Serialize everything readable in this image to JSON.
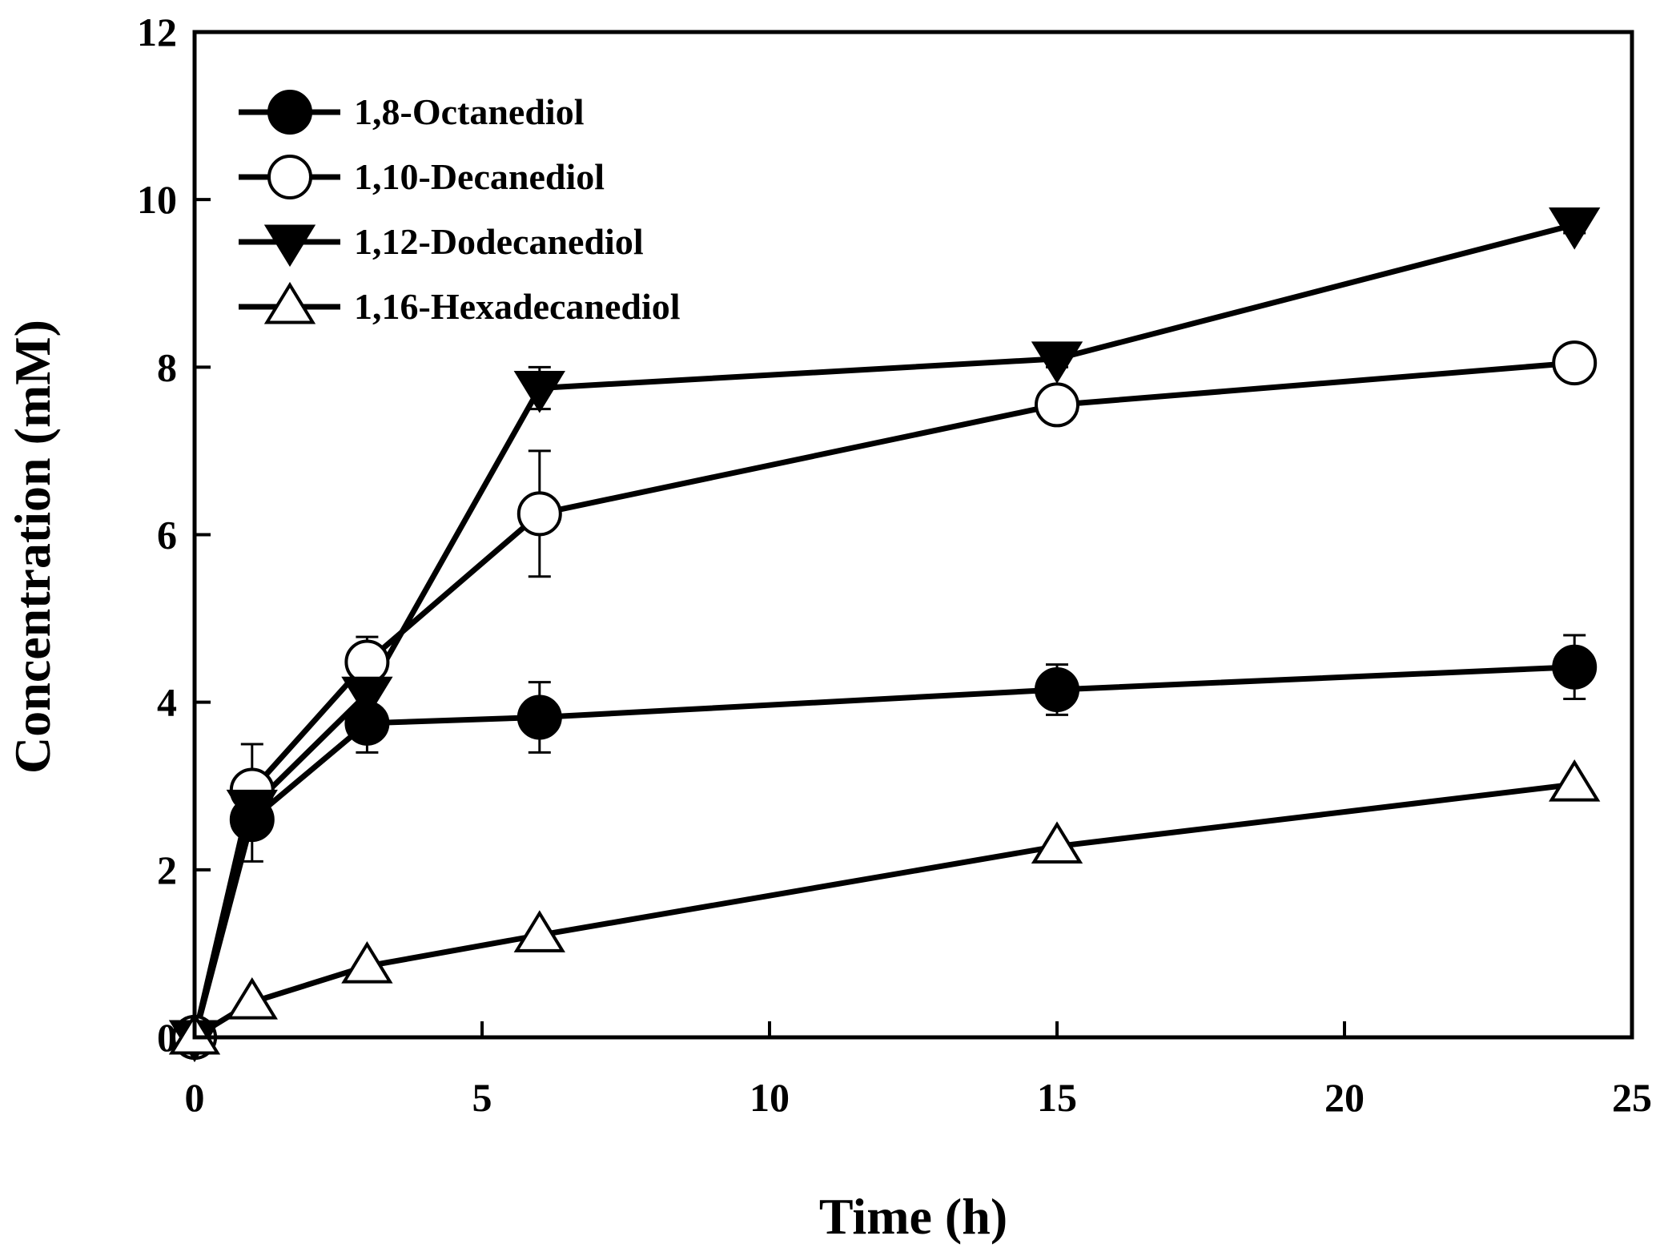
{
  "chart_data": {
    "type": "line",
    "title": "",
    "xlabel": "Time (h)",
    "ylabel": "Concentration (mM)",
    "xlim": [
      0,
      25
    ],
    "ylim": [
      0,
      12
    ],
    "xticks": [
      0,
      5,
      10,
      15,
      20,
      25
    ],
    "yticks": [
      0,
      2,
      4,
      6,
      8,
      10,
      12
    ],
    "grid": false,
    "legend_position": "top-left",
    "series": [
      {
        "name": "1,8-Octanediol",
        "marker": "filled-circle",
        "x": [
          0,
          1,
          3,
          6,
          15,
          24
        ],
        "y": [
          0,
          2.6,
          3.75,
          3.82,
          4.15,
          4.42
        ],
        "err": [
          0,
          0.5,
          0.35,
          0.42,
          0.3,
          0.38
        ]
      },
      {
        "name": "1,10-Decanediol",
        "marker": "open-circle",
        "x": [
          0,
          1,
          3,
          6,
          15,
          24
        ],
        "y": [
          0,
          2.95,
          4.48,
          6.25,
          7.55,
          8.05
        ],
        "err": [
          0,
          0.55,
          0.3,
          0.75,
          0.1,
          0.1
        ]
      },
      {
        "name": "1,12-Dodecanediol",
        "marker": "filled-triangle-down",
        "x": [
          0,
          1,
          3,
          6,
          15,
          24
        ],
        "y": [
          0,
          2.75,
          4.1,
          7.75,
          8.1,
          9.7
        ],
        "err": [
          0,
          0.3,
          0.25,
          0.25,
          0.1,
          0.1
        ]
      },
      {
        "name": "1,16-Hexadecanediol",
        "marker": "open-triangle-up",
        "x": [
          0,
          1,
          3,
          6,
          15,
          24
        ],
        "y": [
          0,
          0.42,
          0.85,
          1.22,
          2.28,
          3.02
        ],
        "err": [
          0,
          0,
          0,
          0,
          0,
          0
        ]
      }
    ]
  }
}
